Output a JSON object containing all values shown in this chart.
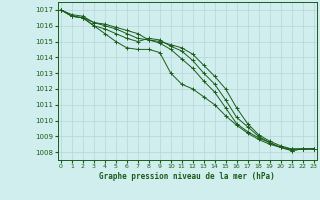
{
  "xlabel": "Graphe pression niveau de la mer (hPa)",
  "ylim": [
    1007.5,
    1017.5
  ],
  "xlim": [
    -0.3,
    23.3
  ],
  "yticks": [
    1008,
    1009,
    1010,
    1011,
    1012,
    1013,
    1014,
    1015,
    1016,
    1017
  ],
  "xticks": [
    0,
    1,
    2,
    3,
    4,
    5,
    6,
    7,
    8,
    9,
    10,
    11,
    12,
    13,
    14,
    15,
    16,
    17,
    18,
    19,
    20,
    21,
    22,
    23
  ],
  "background_color": "#d0eeee",
  "grid_color": "#b8d4d8",
  "line_color": "#1a5c1a",
  "series": [
    [
      1017.0,
      1016.6,
      1016.5,
      1016.2,
      1016.0,
      1015.8,
      1015.5,
      1015.2,
      1015.1,
      1015.0,
      1014.8,
      1014.6,
      1014.2,
      1013.5,
      1012.8,
      1012.0,
      1010.8,
      1009.8,
      1009.1,
      1008.7,
      1008.4,
      1008.2,
      1008.2,
      1008.2
    ],
    [
      1017.0,
      1016.7,
      1016.6,
      1016.2,
      1016.1,
      1015.9,
      1015.7,
      1015.5,
      1015.1,
      1014.9,
      1014.5,
      1013.9,
      1013.3,
      1012.5,
      1011.8,
      1010.8,
      1009.8,
      1009.3,
      1008.9,
      1008.6,
      1008.3,
      1008.2,
      1008.2,
      1008.2
    ],
    [
      1017.0,
      1016.6,
      1016.5,
      1016.0,
      1015.8,
      1015.5,
      1015.2,
      1015.0,
      1015.2,
      1015.1,
      1014.7,
      1014.4,
      1013.8,
      1013.0,
      1012.3,
      1011.3,
      1010.2,
      1009.6,
      1009.0,
      1008.6,
      1008.3,
      1008.1,
      1008.2,
      1008.2
    ],
    [
      1017.0,
      1016.6,
      1016.5,
      1016.0,
      1015.5,
      1015.0,
      1014.6,
      1014.5,
      1014.5,
      1014.3,
      1013.0,
      1012.3,
      1012.0,
      1011.5,
      1011.0,
      1010.3,
      1009.7,
      1009.2,
      1008.8,
      1008.5,
      1008.3,
      1008.1,
      1008.2,
      1008.2
    ]
  ]
}
